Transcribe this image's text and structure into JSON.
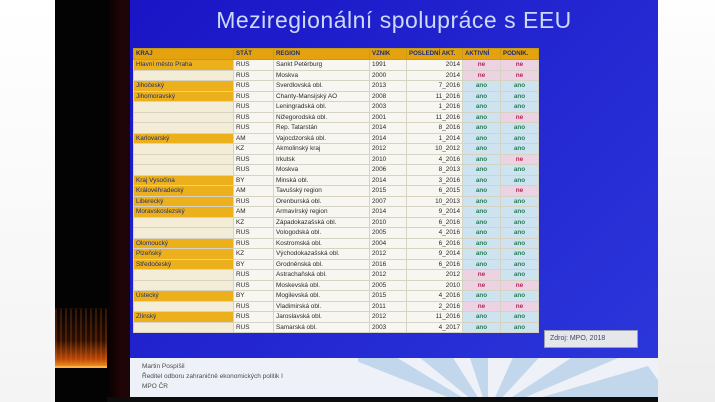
{
  "slide": {
    "title": "Meziregionální spolupráce s EEU",
    "source_label": "Zdroj: MPO, 2018"
  },
  "table": {
    "headers": [
      "KRAJ",
      "STÁT",
      "REGION",
      "VZNIK",
      "POSLEDNÍ AKT.",
      "AKTIVNÍ",
      "PODNIK."
    ],
    "rows": [
      [
        "Hlavní město Praha",
        "RUS",
        "Sankt Petěrburg",
        "1991",
        "2014",
        "ne",
        "ne"
      ],
      [
        "",
        "RUS",
        "Moskva",
        "2000",
        "2014",
        "ne",
        "ne"
      ],
      [
        "Jihočeský",
        "RUS",
        "Sverdlovská obl.",
        "2013",
        "7_2016",
        "ano",
        "ano"
      ],
      [
        "Jihomoravský",
        "RUS",
        "Chanty-Mansijský AO",
        "2008",
        "11_2016",
        "ano",
        "ano"
      ],
      [
        "",
        "RUS",
        "Leningradská obl.",
        "2003",
        "1_2016",
        "ano",
        "ano"
      ],
      [
        "",
        "RUS",
        "Nižegorodská obl.",
        "2001",
        "11_2016",
        "ano",
        "ne"
      ],
      [
        "",
        "RUS",
        "Rep. Tatarstán",
        "2014",
        "8_2016",
        "ano",
        "ano"
      ],
      [
        "Karlovarský",
        "AM",
        "Vajocdzorská obl.",
        "2014",
        "1_2014",
        "ano",
        "ano"
      ],
      [
        "",
        "KZ",
        "Akmolinský kraj",
        "2012",
        "10_2012",
        "ano",
        "ano"
      ],
      [
        "",
        "RUS",
        "Irkutsk",
        "2010",
        "4_2016",
        "ano",
        "ne"
      ],
      [
        "",
        "RUS",
        "Moskva",
        "2006",
        "8_2013",
        "ano",
        "ano"
      ],
      [
        "Kraj Vysočina",
        "BY",
        "Minská obl.",
        "2014",
        "3_2016",
        "ano",
        "ano"
      ],
      [
        "Královéhradecký",
        "AM",
        "Tavušský region",
        "2015",
        "6_2015",
        "ano",
        "ne"
      ],
      [
        "Liberecký",
        "RUS",
        "Orenburská obl.",
        "2007",
        "10_2013",
        "ano",
        "ano"
      ],
      [
        "Moravskoslezský",
        "AM",
        "Armavírský region",
        "2014",
        "9_2014",
        "ano",
        "ano"
      ],
      [
        "",
        "KZ",
        "Západokazašská obl.",
        "2010",
        "6_2016",
        "ano",
        "ano"
      ],
      [
        "",
        "RUS",
        "Vologodská obl.",
        "2005",
        "4_2016",
        "ano",
        "ano"
      ],
      [
        "Olomoucký",
        "RUS",
        "Kostromská obl.",
        "2004",
        "6_2016",
        "ano",
        "ano"
      ],
      [
        "Plzeňský",
        "KZ",
        "Východokazašská obl.",
        "2012",
        "9_2014",
        "ano",
        "ano"
      ],
      [
        "Středočeský",
        "BY",
        "Grodněnská obl.",
        "2016",
        "6_2016",
        "ano",
        "ano"
      ],
      [
        "",
        "RUS",
        "Astrachaňská obl.",
        "2012",
        "2012",
        "ne",
        "ano"
      ],
      [
        "",
        "RUS",
        "Moskevská obl.",
        "2005",
        "2010",
        "ne",
        "ne"
      ],
      [
        "Ústecký",
        "BY",
        "Mogilevská obl.",
        "2015",
        "4_2016",
        "ano",
        "ano"
      ],
      [
        "",
        "RUS",
        "Vladimirská obl.",
        "2011",
        "2_2016",
        "ne",
        "ne"
      ],
      [
        "Zlínský",
        "RUS",
        "Jaroslavská obl.",
        "2012",
        "11_2016",
        "ano",
        "ano"
      ],
      [
        "",
        "RUS",
        "Samarská obl.",
        "2003",
        "4_2017",
        "ano",
        "ano"
      ]
    ]
  },
  "footer": {
    "presenter_name": "Martin Pospíšil",
    "presenter_role": "Ředitel odboru zahraničně ekonomických politik I",
    "presenter_org": "MPO ČR"
  },
  "colors": {
    "slide-blue1": "#1a15c6",
    "slide-blue2": "#2b36da",
    "title-color": "#ccdaf8",
    "header-bg": "#e4a30e",
    "header-text": "#1c2e7a",
    "kraj-bg": "#ecb01c",
    "kraj-empty-bg": "#f3ecd6",
    "cell-bg": "#f7f6f1",
    "ano-bg": "#cde4f0",
    "ano-text": "#2b7e57",
    "ne-bg": "#ecd2e2",
    "ne-text": "#b02758",
    "footer-bg": "#eef2f8",
    "pattern-color": "#c3d7ec"
  }
}
